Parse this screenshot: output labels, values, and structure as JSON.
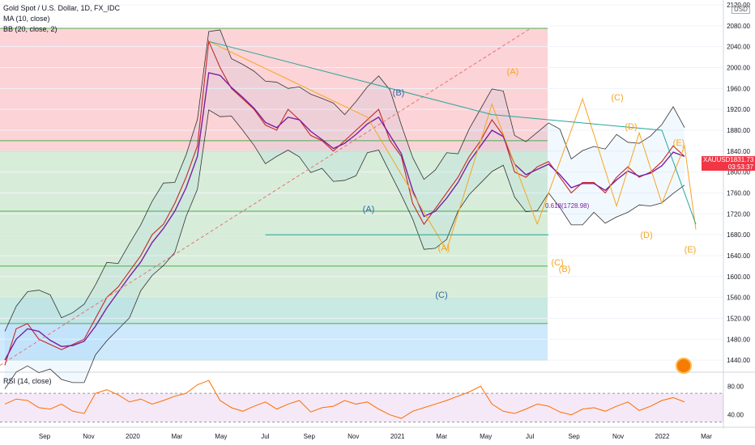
{
  "header": {
    "title": "Gold Spot / U.S. Dollar, 1D, FX_IDC",
    "ma_label": "MA (10, close)",
    "bb_label": "BB (20, close, 2)",
    "rsi_label": "RSI (14, close)",
    "currency": "USD"
  },
  "price_badge": {
    "symbol": "XAUUSD",
    "price": "1831.73",
    "countdown": "03:53:37",
    "color": "#f23645"
  },
  "chart_data": [
    {
      "type": "line",
      "name": "price",
      "ylim": [
        1420,
        2120
      ],
      "y_ticks": [
        "2120.00",
        "2080.00",
        "2040.00",
        "2000.00",
        "1960.00",
        "1920.00",
        "1880.00",
        "1840.00",
        "1800.00",
        "1760.00",
        "1720.00",
        "1680.00",
        "1640.00",
        "1600.00",
        "1560.00",
        "1520.00",
        "1480.00",
        "1440.00"
      ],
      "x_ticks": [
        "Sep",
        "Nov",
        "2020",
        "Mar",
        "May",
        "Jul",
        "Sep",
        "Nov",
        "2021",
        "Mar",
        "May",
        "Jul",
        "Sep",
        "Nov",
        "2022",
        "Mar"
      ],
      "series": [
        {
          "name": "Gold Spot / U.S. Dollar",
          "values": [
            1430,
            1500,
            1510,
            1480,
            1470,
            1460,
            1470,
            1480,
            1520,
            1560,
            1580,
            1610,
            1640,
            1680,
            1700,
            1740,
            1790,
            1850,
            2050,
            2000,
            1960,
            1940,
            1920,
            1890,
            1880,
            1920,
            1900,
            1870,
            1860,
            1840,
            1860,
            1880,
            1900,
            1920,
            1860,
            1830,
            1740,
            1700,
            1730,
            1760,
            1790,
            1830,
            1860,
            1900,
            1870,
            1800,
            1790,
            1810,
            1820,
            1790,
            1760,
            1780,
            1780,
            1760,
            1790,
            1810,
            1790,
            1800,
            1820,
            1850,
            1830
          ]
        },
        {
          "name": "MA (10, close)",
          "values": [
            1440,
            1480,
            1500,
            1495,
            1478,
            1466,
            1468,
            1476,
            1505,
            1540,
            1570,
            1600,
            1628,
            1665,
            1692,
            1725,
            1770,
            1830,
            1990,
            1985,
            1962,
            1943,
            1922,
            1895,
            1885,
            1905,
            1900,
            1878,
            1862,
            1845,
            1855,
            1872,
            1892,
            1905,
            1870,
            1835,
            1765,
            1715,
            1725,
            1750,
            1780,
            1820,
            1850,
            1880,
            1868,
            1815,
            1795,
            1805,
            1815,
            1795,
            1770,
            1778,
            1778,
            1765,
            1785,
            1802,
            1792,
            1798,
            1812,
            1838,
            1830
          ]
        }
      ],
      "horizontal_levels": [
        2075,
        1860,
        1840,
        1725,
        1680,
        1620,
        1560,
        1510,
        1440
      ],
      "levels_zones": [
        "#f23645",
        "#f23645",
        "#4caf50",
        "#4caf50",
        "#4caf50",
        "#4caf50",
        "#089981",
        "#2196f3"
      ],
      "wave_labels": [
        {
          "text": "(A)",
          "color": "#3366aa"
        },
        {
          "text": "(B)",
          "color": "#3366aa"
        },
        {
          "text": "(C)",
          "color": "#3366aa"
        },
        {
          "text": "(A)",
          "color": "#f5a623"
        },
        {
          "text": "(A)",
          "color": "#f5a623"
        },
        {
          "text": "(C)",
          "color": "#f5a623"
        },
        {
          "text": "(B)",
          "color": "#f5a623"
        },
        {
          "text": "(C)",
          "color": "#f5a623"
        },
        {
          "text": "(D)",
          "color": "#f5a623"
        },
        {
          "text": "(D)",
          "color": "#f5a623"
        },
        {
          "text": "(E)",
          "color": "#f5a623"
        },
        {
          "text": "(E)",
          "color": "#f5a623"
        }
      ],
      "overlay_text": "0.618(1728.98)"
    },
    {
      "type": "line",
      "name": "RSI (14, close)",
      "ylim": [
        25,
        95
      ],
      "y_ticks": [
        "80.00",
        "40.00"
      ],
      "band": [
        30,
        70
      ],
      "series": [
        {
          "name": "RSI (14, close)",
          "values": [
            55,
            62,
            60,
            50,
            48,
            55,
            45,
            42,
            70,
            75,
            68,
            58,
            62,
            55,
            60,
            66,
            70,
            82,
            88,
            60,
            50,
            45,
            52,
            58,
            48,
            55,
            60,
            44,
            50,
            52,
            60,
            55,
            58,
            48,
            40,
            35,
            45,
            50,
            55,
            60,
            66,
            72,
            80,
            55,
            45,
            42,
            48,
            55,
            52,
            44,
            40,
            48,
            50,
            45,
            52,
            58,
            46,
            52,
            60,
            64,
            58
          ]
        }
      ]
    }
  ]
}
